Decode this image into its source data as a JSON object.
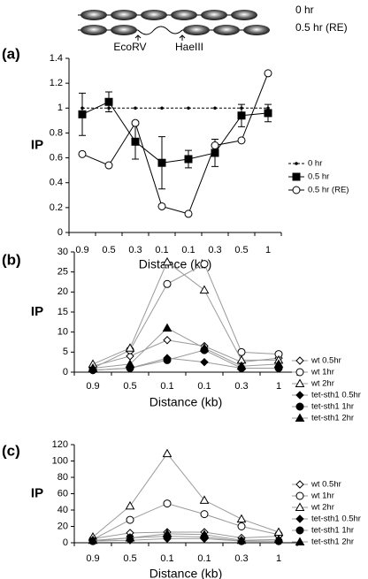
{
  "diagram": {
    "labels": [
      "0 hr",
      "0.5 hr (RE)"
    ],
    "sites": [
      "EcoRV",
      "HaeIII"
    ]
  },
  "chart_data": [
    {
      "type": "line",
      "panel": "(a)",
      "ylabel": "IP",
      "xlabel": "Distance (kb)",
      "categories": [
        "0.9",
        "0.5",
        "0.3",
        "0.1",
        "0.1",
        "0.3",
        "0.5",
        "1"
      ],
      "ylim": [
        0,
        1.4
      ],
      "yticks": [
        0,
        0.2,
        0.4,
        0.6,
        0.8,
        1,
        1.2,
        1.4
      ],
      "series": [
        {
          "name": "0 hr",
          "color": "#000000",
          "marker": "dot",
          "filled": true,
          "dash": true,
          "values": [
            1,
            1,
            1,
            1,
            1,
            1,
            1,
            1
          ]
        },
        {
          "name": "0.5 hr",
          "color": "#000000",
          "marker": "square",
          "filled": true,
          "dash": false,
          "values": [
            0.95,
            1.05,
            0.73,
            0.56,
            0.59,
            0.64,
            0.94,
            0.96
          ],
          "errors": [
            0.17,
            0.08,
            0.14,
            0.21,
            0.07,
            0.11,
            0.09,
            0.07
          ]
        },
        {
          "name": "0.5 hr (RE)",
          "color": "#000000",
          "marker": "circle",
          "filled": false,
          "dash": false,
          "values": [
            0.63,
            0.54,
            0.88,
            0.21,
            0.15,
            0.7,
            0.74,
            1.28
          ]
        }
      ]
    },
    {
      "type": "line",
      "panel": "(b)",
      "ylabel": "IP",
      "xlabel": "Distance (kb)",
      "categories": [
        "0.9",
        "0.5",
        "0.1",
        "0.1",
        "0.3",
        "1"
      ],
      "ylim": [
        0,
        30
      ],
      "yticks": [
        0,
        5,
        10,
        15,
        20,
        25,
        30
      ],
      "line_color": "#999999",
      "series": [
        {
          "name": "wt 0.5hr",
          "color": "#000000",
          "marker": "diamond",
          "filled": false,
          "values": [
            1.5,
            4,
            8,
            6.5,
            2.5,
            3.5
          ]
        },
        {
          "name": "wt 1hr",
          "color": "#000000",
          "marker": "circle",
          "filled": false,
          "values": [
            1,
            5.5,
            22,
            27,
            5,
            4.5
          ]
        },
        {
          "name": "wt 2hr",
          "color": "#000000",
          "marker": "triangle",
          "filled": false,
          "values": [
            2,
            6,
            27.5,
            20.5,
            3,
            3
          ]
        },
        {
          "name": "tet-sth1 0.5hr",
          "color": "#000000",
          "marker": "diamond",
          "filled": true,
          "values": [
            0.5,
            1,
            3.5,
            2.5,
            1,
            1
          ]
        },
        {
          "name": "tet-sth1 1hr",
          "color": "#000000",
          "marker": "circle",
          "filled": true,
          "values": [
            0.5,
            1,
            3,
            5.5,
            1,
            1
          ]
        },
        {
          "name": "tet-sth1 2hr",
          "color": "#000000",
          "marker": "triangle",
          "filled": true,
          "values": [
            1,
            2,
            11,
            6,
            1.5,
            2
          ]
        }
      ]
    },
    {
      "type": "line",
      "panel": "(c)",
      "ylabel": "IP",
      "xlabel": "Distance (kb)",
      "categories": [
        "0.9",
        "0.5",
        "0.1",
        "0.1",
        "0.3",
        "1"
      ],
      "ylim": [
        0,
        120
      ],
      "yticks": [
        0,
        20,
        40,
        60,
        80,
        100,
        120
      ],
      "line_color": "#999999",
      "series": [
        {
          "name": "wt 0.5hr",
          "color": "#000000",
          "marker": "diamond",
          "filled": false,
          "values": [
            5,
            12,
            13,
            13,
            6,
            8
          ]
        },
        {
          "name": "wt 1hr",
          "color": "#000000",
          "marker": "circle",
          "filled": false,
          "values": [
            4,
            28,
            48,
            35,
            20,
            10
          ]
        },
        {
          "name": "wt 2hr",
          "color": "#000000",
          "marker": "triangle",
          "filled": false,
          "values": [
            7,
            45,
            109,
            52,
            29,
            13
          ]
        },
        {
          "name": "tet-sth1 0.5hr",
          "color": "#000000",
          "marker": "diamond",
          "filled": true,
          "values": [
            2,
            3,
            5,
            5,
            2,
            2
          ]
        },
        {
          "name": "tet-sth1 1hr",
          "color": "#000000",
          "marker": "circle",
          "filled": true,
          "values": [
            2,
            6,
            8,
            7,
            2,
            2
          ]
        },
        {
          "name": "tet-sth1 2hr",
          "color": "#000000",
          "marker": "triangle",
          "filled": true,
          "values": [
            3,
            6,
            11,
            10,
            3,
            4
          ]
        }
      ]
    }
  ]
}
